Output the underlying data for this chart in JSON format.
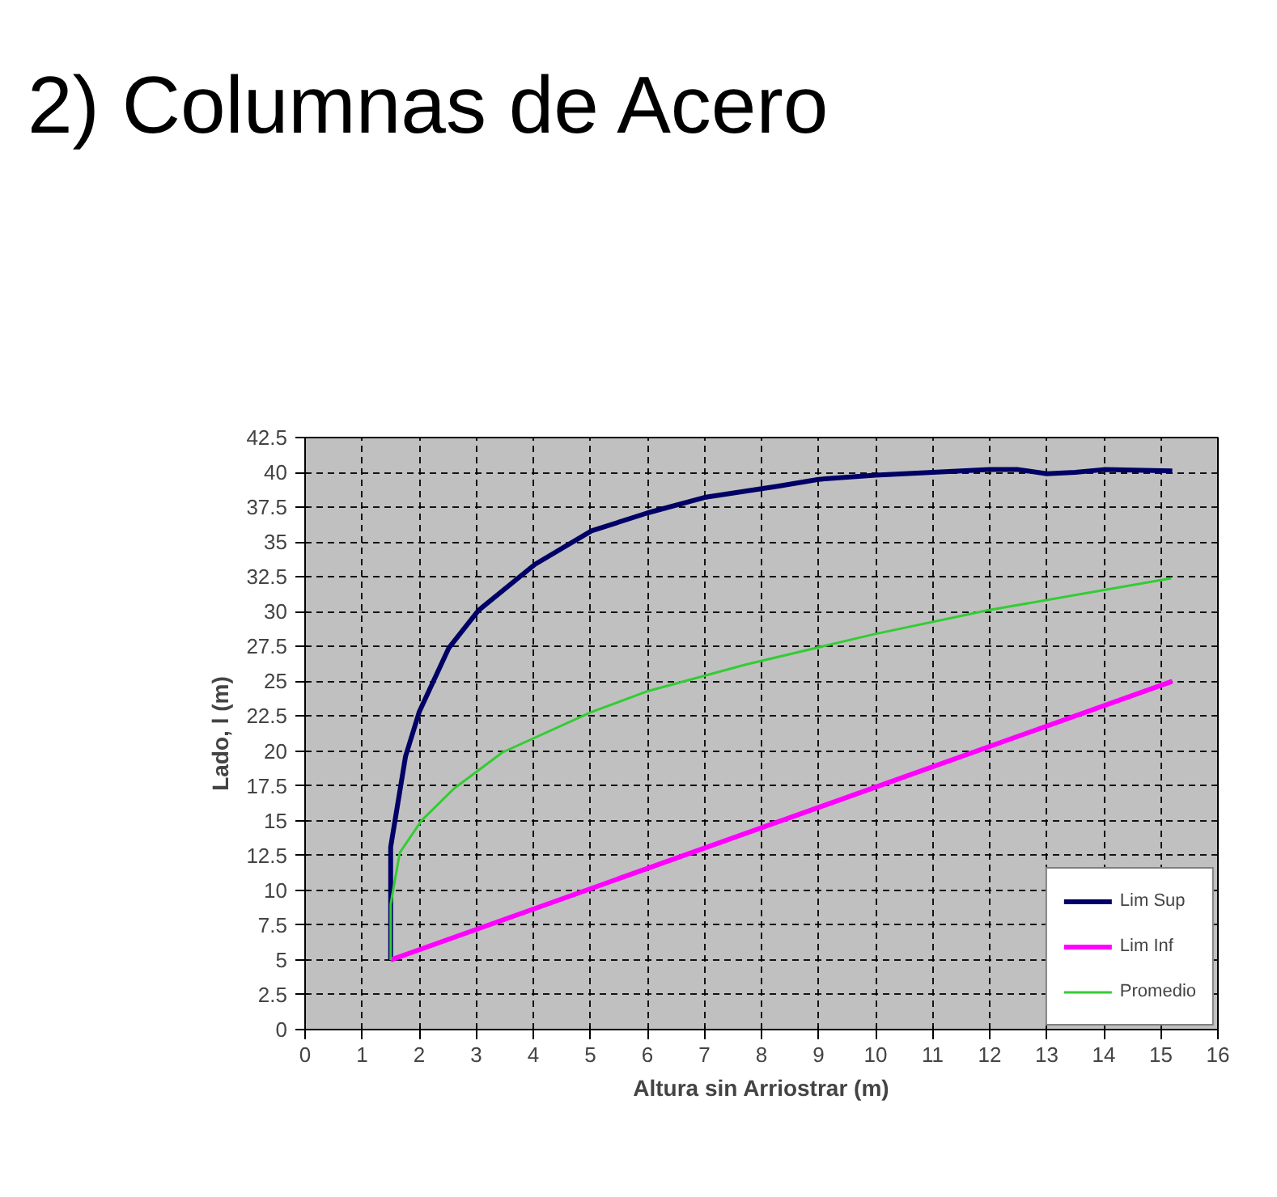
{
  "chart_data": {
    "type": "line",
    "title": "2) Columnas de Acero",
    "xlabel": "Altura sin Arriostrar (m)",
    "ylabel": "Lado, l (m)",
    "xlim": [
      0,
      16
    ],
    "ylim": [
      0,
      42.5
    ],
    "xticks": [
      0,
      1,
      2,
      3,
      4,
      5,
      6,
      7,
      8,
      9,
      10,
      11,
      12,
      13,
      14,
      15,
      16
    ],
    "yticks": [
      0,
      2.5,
      5,
      7.5,
      10,
      12.5,
      15,
      17.5,
      20,
      22.5,
      25,
      27.5,
      30,
      32.5,
      35,
      37.5,
      40,
      42.5
    ],
    "grid": true,
    "legend": "bottom right",
    "line_style": "solid",
    "marker": "none",
    "series": [
      {
        "name": "Lim Sup",
        "color": "#000066",
        "x": [
          1.5,
          1.5,
          1.5,
          1.76,
          2.0,
          2.52,
          3.04,
          4.03,
          5.02,
          6.01,
          7,
          8.28,
          9,
          10,
          11,
          12,
          12.5,
          13,
          13.5,
          14,
          15.2
        ],
        "values": [
          5,
          9.2,
          13.1,
          19.6,
          22.8,
          27.4,
          30.1,
          33.4,
          35.8,
          37.1,
          38.2,
          39.0,
          39.5,
          39.8,
          40.0,
          40.2,
          40.2,
          39.9,
          40.0,
          40.2,
          40.1
        ]
      },
      {
        "name": "Lim Inf",
        "color": "#ff00ff",
        "x": [
          1.5,
          15.2
        ],
        "values": [
          5,
          25
        ]
      },
      {
        "name": "Promedio",
        "color": "#33cc33",
        "x": [
          1.5,
          1.5,
          1.66,
          2.04,
          2.61,
          3.46,
          5.02,
          6.01,
          7.72,
          9.99,
          11.97,
          15.18
        ],
        "values": [
          5,
          9,
          12.7,
          15.0,
          17.3,
          19.9,
          22.8,
          24.3,
          26.2,
          28.4,
          30.1,
          32.4
        ]
      }
    ]
  }
}
